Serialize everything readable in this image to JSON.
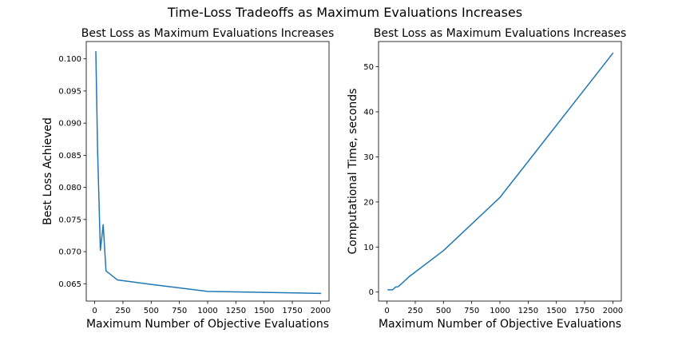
{
  "figure": {
    "title": "Time-Loss Tradeoffs as Maximum Evaluations Increases",
    "line_color": "#1f77b4"
  },
  "chart_data": [
    {
      "type": "line",
      "title": "Best Loss as Maximum Evaluations Increases",
      "xlabel": "Maximum Number of Objective Evaluations",
      "ylabel": "Best Loss Achieved",
      "xlim": [
        -75,
        2075
      ],
      "ylim": [
        0.0623,
        0.1027
      ],
      "grid": false,
      "xticks": [
        0,
        250,
        500,
        750,
        1000,
        1250,
        1500,
        1750,
        2000
      ],
      "yticks": [
        0.065,
        0.07,
        0.075,
        0.08,
        0.085,
        0.09,
        0.095,
        0.1
      ],
      "xtick_labels": [
        "0",
        "250",
        "500",
        "750",
        "1000",
        "1250",
        "1500",
        "1750",
        "2000"
      ],
      "ytick_labels": [
        "0.065",
        "0.070",
        "0.075",
        "0.080",
        "0.085",
        "0.090",
        "0.095",
        "0.100"
      ],
      "series": [
        {
          "x": [
            10,
            25,
            50,
            75,
            100,
            200,
            500,
            1000,
            2000
          ],
          "y": [
            0.1011,
            0.0861,
            0.0702,
            0.0742,
            0.067,
            0.0656,
            0.0649,
            0.0638,
            0.0635
          ]
        }
      ]
    },
    {
      "type": "line",
      "title": "Best Loss as Maximum Evaluations Increases",
      "xlabel": "Maximum Number of Objective Evaluations",
      "ylabel": "Computational Time, seconds",
      "xlim": [
        -75,
        2075
      ],
      "ylim": [
        -2.0,
        55.6
      ],
      "grid": false,
      "xticks": [
        0,
        250,
        500,
        750,
        1000,
        1250,
        1500,
        1750,
        2000
      ],
      "yticks": [
        0,
        10,
        20,
        30,
        40,
        50
      ],
      "xtick_labels": [
        "0",
        "250",
        "500",
        "750",
        "1000",
        "1250",
        "1500",
        "1750",
        "2000"
      ],
      "ytick_labels": [
        "0",
        "10",
        "20",
        "30",
        "40",
        "50"
      ],
      "series": [
        {
          "x": [
            10,
            25,
            50,
            75,
            100,
            200,
            500,
            1000,
            2000
          ],
          "y": [
            0.5,
            0.5,
            0.5,
            1.1,
            1.2,
            3.5,
            9.2,
            21.0,
            53.0
          ]
        }
      ]
    }
  ]
}
